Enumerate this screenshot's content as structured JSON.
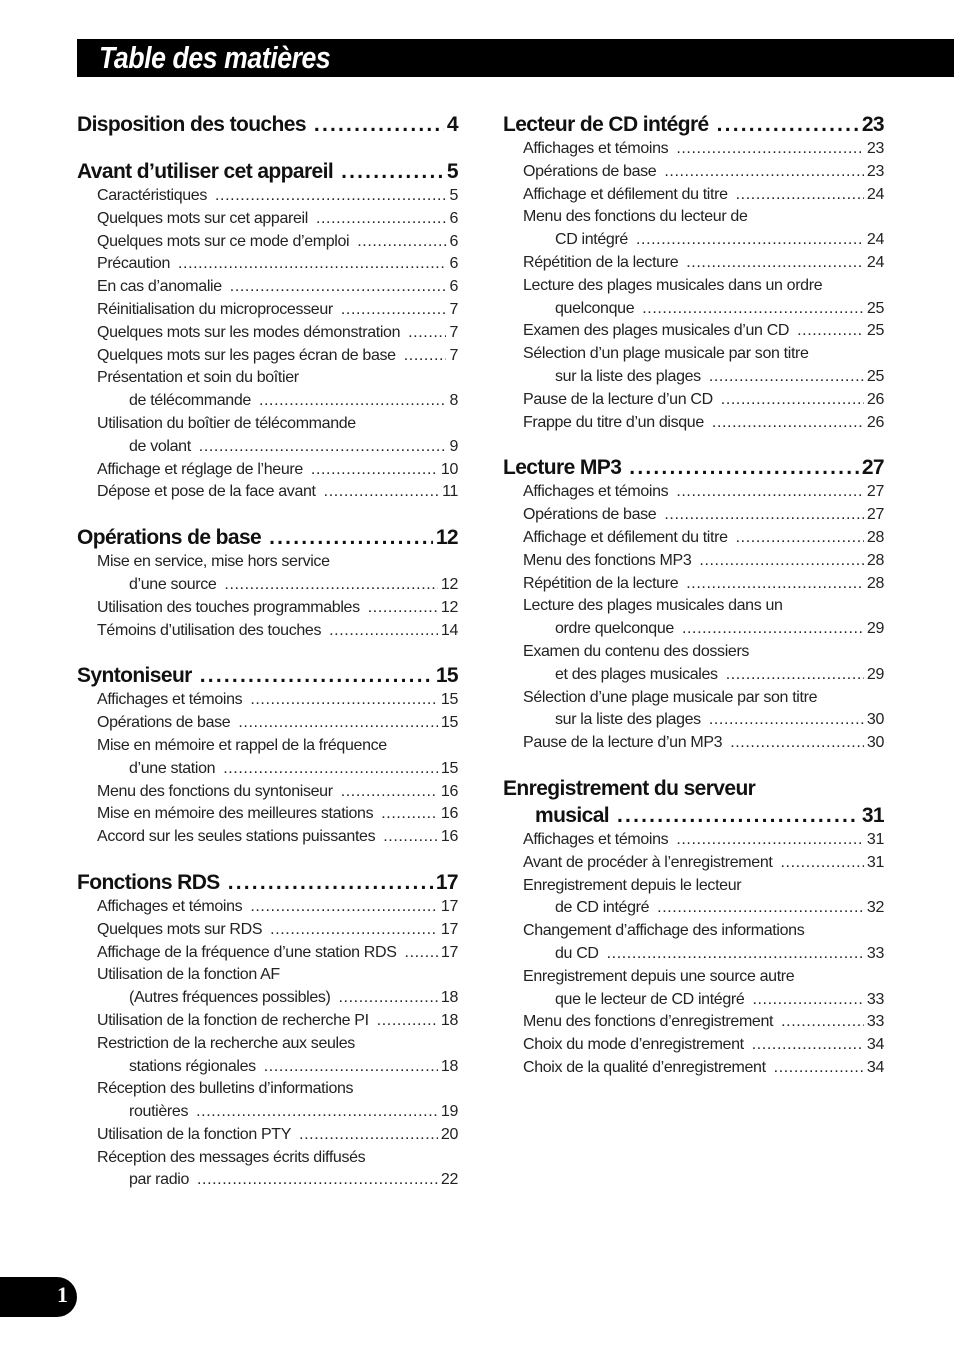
{
  "title": "Table des matières",
  "page_number": "1",
  "columns": [
    [
      {
        "heading": [
          "Disposition des touches"
        ],
        "page": "4",
        "items": []
      },
      {
        "heading": [
          "Avant d’utiliser cet appareil"
        ],
        "page": "5",
        "items": [
          {
            "lines": [
              "Caractéristiques"
            ],
            "page": "5"
          },
          {
            "lines": [
              "Quelques mots sur cet appareil"
            ],
            "page": "6"
          },
          {
            "lines": [
              "Quelques mots sur ce mode d’emploi"
            ],
            "page": "6"
          },
          {
            "lines": [
              "Précaution"
            ],
            "page": "6"
          },
          {
            "lines": [
              "En cas d’anomalie"
            ],
            "page": "6"
          },
          {
            "lines": [
              "Réinitialisation du microprocesseur"
            ],
            "page": "7"
          },
          {
            "lines": [
              "Quelques mots sur les modes démonstration"
            ],
            "page": "7"
          },
          {
            "lines": [
              "Quelques mots sur les pages écran de base"
            ],
            "page": "7"
          },
          {
            "lines": [
              "Présentation et soin du boîtier",
              "de télécommande"
            ],
            "page": "8"
          },
          {
            "lines": [
              "Utilisation du boîtier de télécommande",
              "de volant"
            ],
            "page": "9"
          },
          {
            "lines": [
              "Affichage et réglage de l’heure"
            ],
            "page": "10"
          },
          {
            "lines": [
              "Dépose et pose de la face avant"
            ],
            "page": "11"
          }
        ]
      },
      {
        "heading": [
          "Opérations de base"
        ],
        "page": "12",
        "items": [
          {
            "lines": [
              "Mise en service, mise hors service",
              "d’une source"
            ],
            "page": "12"
          },
          {
            "lines": [
              "Utilisation des touches programmables"
            ],
            "page": "12"
          },
          {
            "lines": [
              "Témoins d’utilisation des touches"
            ],
            "page": "14"
          }
        ]
      },
      {
        "heading": [
          "Syntoniseur"
        ],
        "page": "15",
        "items": [
          {
            "lines": [
              "Affichages et témoins"
            ],
            "page": "15"
          },
          {
            "lines": [
              "Opérations de base"
            ],
            "page": "15"
          },
          {
            "lines": [
              "Mise en mémoire et rappel de la fréquence",
              "d’une station"
            ],
            "page": "15"
          },
          {
            "lines": [
              "Menu des fonctions du syntoniseur"
            ],
            "page": "16"
          },
          {
            "lines": [
              "Mise en mémoire des meilleures stations"
            ],
            "page": "16"
          },
          {
            "lines": [
              "Accord sur les seules stations puissantes"
            ],
            "page": "16"
          }
        ]
      },
      {
        "heading": [
          "Fonctions RDS"
        ],
        "page": "17",
        "items": [
          {
            "lines": [
              "Affichages et témoins"
            ],
            "page": "17"
          },
          {
            "lines": [
              "Quelques mots sur RDS"
            ],
            "page": "17"
          },
          {
            "lines": [
              "Affichage de la fréquence d’une station RDS"
            ],
            "page": "17"
          },
          {
            "lines": [
              "Utilisation de la fonction AF",
              "(Autres fréquences possibles)"
            ],
            "page": "18"
          },
          {
            "lines": [
              "Utilisation de la fonction de recherche PI"
            ],
            "page": "18"
          },
          {
            "lines": [
              "Restriction de la recherche aux seules",
              "stations régionales"
            ],
            "page": "18"
          },
          {
            "lines": [
              "Réception des bulletins d’informations",
              "routières"
            ],
            "page": "19"
          },
          {
            "lines": [
              "Utilisation de la fonction PTY"
            ],
            "page": "20"
          },
          {
            "lines": [
              "Réception des messages écrits diffusés",
              "par radio"
            ],
            "page": "22"
          }
        ]
      }
    ],
    [
      {
        "heading": [
          "Lecteur de CD intégré"
        ],
        "page": "23",
        "items": [
          {
            "lines": [
              "Affichages et témoins"
            ],
            "page": "23"
          },
          {
            "lines": [
              "Opérations de base"
            ],
            "page": "23"
          },
          {
            "lines": [
              "Affichage et défilement du titre"
            ],
            "page": "24"
          },
          {
            "lines": [
              "Menu des fonctions du lecteur de",
              "CD intégré"
            ],
            "page": "24"
          },
          {
            "lines": [
              "Répétition de la lecture"
            ],
            "page": "24"
          },
          {
            "lines": [
              "Lecture des plages musicales dans un ordre",
              "quelconque"
            ],
            "page": "25"
          },
          {
            "lines": [
              "Examen des plages musicales d’un CD"
            ],
            "page": "25"
          },
          {
            "lines": [
              "Sélection d’un plage musicale par son titre",
              "sur la liste des plages"
            ],
            "page": "25"
          },
          {
            "lines": [
              "Pause de la lecture d’un CD"
            ],
            "page": "26"
          },
          {
            "lines": [
              "Frappe du titre d’un disque"
            ],
            "page": "26"
          }
        ]
      },
      {
        "heading": [
          "Lecture MP3"
        ],
        "page": "27",
        "items": [
          {
            "lines": [
              "Affichages et témoins"
            ],
            "page": "27"
          },
          {
            "lines": [
              "Opérations de base"
            ],
            "page": "27"
          },
          {
            "lines": [
              "Affichage et défilement du titre"
            ],
            "page": "28"
          },
          {
            "lines": [
              "Menu des fonctions MP3"
            ],
            "page": "28"
          },
          {
            "lines": [
              "Répétition de la lecture"
            ],
            "page": "28"
          },
          {
            "lines": [
              "Lecture des plages musicales dans un",
              "ordre quelconque"
            ],
            "page": "29"
          },
          {
            "lines": [
              "Examen du contenu des dossiers",
              "et des plages musicales"
            ],
            "page": "29"
          },
          {
            "lines": [
              "Sélection d’une plage musicale par son titre",
              "sur la liste des plages"
            ],
            "page": "30"
          },
          {
            "lines": [
              "Pause de la lecture d’un MP3"
            ],
            "page": "30"
          }
        ]
      },
      {
        "heading": [
          "Enregistrement du serveur",
          "musical"
        ],
        "page": "31",
        "items": [
          {
            "lines": [
              "Affichages et témoins"
            ],
            "page": "31"
          },
          {
            "lines": [
              "Avant de procéder à l’enregistrement"
            ],
            "page": "31"
          },
          {
            "lines": [
              "Enregistrement depuis le lecteur",
              "de CD intégré"
            ],
            "page": "32"
          },
          {
            "lines": [
              "Changement d’affichage des informations",
              "du CD"
            ],
            "page": "33"
          },
          {
            "lines": [
              "Enregistrement depuis une source autre",
              "que le lecteur de CD intégré"
            ],
            "page": "33"
          },
          {
            "lines": [
              "Menu des fonctions d’enregistrement"
            ],
            "page": "33"
          },
          {
            "lines": [
              "Choix du mode d’enregistrement"
            ],
            "page": "34"
          },
          {
            "lines": [
              "Choix de la qualité d’enregistrement"
            ],
            "page": "34"
          }
        ]
      }
    ]
  ]
}
